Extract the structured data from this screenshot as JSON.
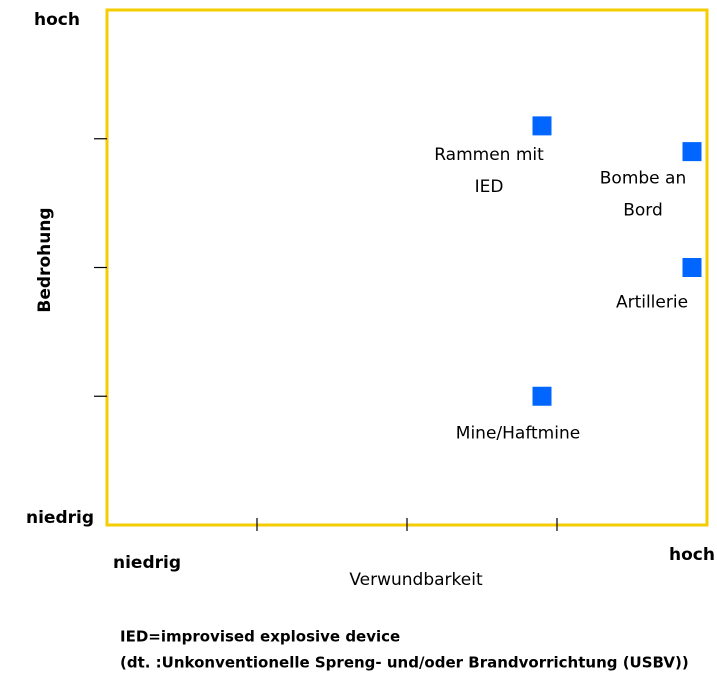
{
  "chart_data": {
    "type": "scatter",
    "x_axis_label": "Verwundbarkeit",
    "y_axis_label": "Bedrohung",
    "x_low_label": "niedrig",
    "x_high_label": "hoch",
    "y_low_label": "niedrig",
    "y_high_label": "hoch",
    "xlim": [
      0,
      4
    ],
    "ylim": [
      0,
      4
    ],
    "xticks": [
      1,
      2,
      3
    ],
    "yticks": [
      1,
      2,
      3
    ],
    "color": "#0066ff",
    "frame_color": "#f5cc00",
    "x": [
      2.9,
      3.9,
      3.9,
      2.9
    ],
    "values": [
      3.1,
      2.9,
      2.0,
      1.0
    ],
    "labels": [
      [
        "Rammen mit",
        "IED"
      ],
      [
        "Bombe an",
        "Bord"
      ],
      [
        "Artillerie"
      ],
      [
        "Mine/Haftmine"
      ]
    ],
    "footnote": [
      "IED=improvised explosive device",
      "(dt. :Unkonventionelle Spreng- und/oder Brandvorrichtung (USBV))"
    ]
  }
}
